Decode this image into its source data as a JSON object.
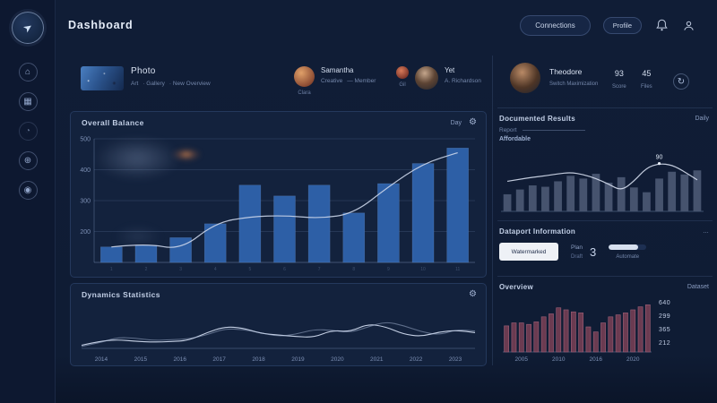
{
  "app": {
    "title": "Dashboard"
  },
  "sidebar": {
    "items": [
      {
        "name": "home",
        "glyph": "⌂"
      },
      {
        "name": "analytics",
        "glyph": "▦"
      },
      {
        "name": "activity",
        "glyph": "◔"
      },
      {
        "name": "history",
        "glyph": "⊕"
      },
      {
        "name": "profile",
        "glyph": "◉"
      }
    ],
    "logo_glyph": "➤"
  },
  "header": {
    "primary_button": "Connections",
    "secondary_button": "Profile"
  },
  "top_row": {
    "media_card": {
      "title": "Photo",
      "meta": [
        "Art",
        "· Gallery",
        "· New Overview"
      ]
    },
    "person_primary": {
      "name": "Samantha",
      "caption": "Clara",
      "role1": "Creative",
      "role2": "— Member"
    },
    "person_secondary": {
      "name": "Yet",
      "caption": "Gil",
      "role": "A. Richardson"
    }
  },
  "profile_card": {
    "name": "Theodore",
    "subtitle": "Switch Maximization",
    "stats": [
      {
        "value": "93",
        "label": "Score"
      },
      {
        "value": "45",
        "label": "Files"
      }
    ],
    "action_glyph": "↻"
  },
  "balance_panel": {
    "title": "Overall Balance",
    "range_label": "Day",
    "gear_glyph": "⚙"
  },
  "dynamics_panel": {
    "title": "Dynamics Statistics",
    "gear_glyph": "⚙"
  },
  "documented_panel": {
    "title": "Documented Results",
    "link_label": "Daily",
    "legend_label": "Report",
    "legend_sub": "Affordable"
  },
  "dataport_panel": {
    "title": "Dataport Information",
    "more_glyph": "…",
    "button_label": "Watermarked",
    "stat": {
      "line1": "Plan",
      "line2": "Draft",
      "value": "3"
    },
    "progress": {
      "label": "Automate",
      "percent": 78
    }
  },
  "overview_panel": {
    "title": "Overview",
    "dataset_label": "Dataset",
    "values": [
      "640",
      "299",
      "365",
      "212"
    ]
  },
  "colors": {
    "background": "#101d36",
    "panel": "#13223d",
    "bar_blue": "#2d5fa6",
    "bar_slate": "#46536e",
    "bar_maroon": "#6b3b51",
    "line_light": "#ccd6ea",
    "accent_orange": "#e09055"
  },
  "chart_data": [
    {
      "id": "balance",
      "type": "bar+line",
      "title": "Overall Balance",
      "categories": [
        "1",
        "2",
        "3",
        "4",
        "5",
        "6",
        "7",
        "8",
        "9",
        "10",
        "11"
      ],
      "bar_values": [
        150,
        155,
        180,
        225,
        350,
        315,
        350,
        260,
        355,
        420,
        470
      ],
      "line_values": [
        150,
        162,
        140,
        228,
        248,
        252,
        242,
        258,
        345,
        420,
        455
      ],
      "ylim": [
        100,
        500
      ],
      "y_ticks": [
        200,
        300,
        400,
        500
      ],
      "grid": true,
      "axis_left": true,
      "bar_color": "#2d5fa6",
      "bar_stroke": "rgba(140,180,235,0.3)",
      "line_color": "#ccd6ea"
    },
    {
      "id": "dynamics",
      "type": "line",
      "title": "Dynamics Statistics",
      "x_labels": [
        "2014",
        "2015",
        "2016",
        "2017",
        "2018",
        "2019",
        "2020",
        "2021",
        "2022",
        "2023"
      ],
      "series": [
        {
          "name": "primary",
          "values": [
            8,
            18,
            22,
            18,
            16,
            17,
            20,
            40,
            55,
            52,
            38,
            34,
            30,
            28,
            46,
            42,
            62,
            55,
            36,
            30,
            42,
            46,
            40
          ]
        },
        {
          "name": "secondary",
          "values": [
            5,
            14,
            28,
            26,
            20,
            22,
            24,
            34,
            50,
            48,
            40,
            30,
            36,
            48,
            46,
            40,
            54,
            68,
            58,
            42,
            34,
            48,
            44
          ]
        }
      ],
      "ylim": [
        0,
        100
      ],
      "grid": false,
      "line_color": "#ccd6ea"
    },
    {
      "id": "documented",
      "type": "bar+line",
      "title": "Documented Results",
      "bar_values": [
        25,
        32,
        38,
        36,
        44,
        52,
        48,
        55,
        42,
        50,
        35,
        28,
        48,
        58,
        54,
        60
      ],
      "line_values": [
        44,
        47,
        50,
        52,
        55,
        57,
        54,
        48,
        40,
        30,
        44,
        64,
        70,
        68,
        58,
        46
      ],
      "annotation": {
        "index": 12,
        "label": "90"
      },
      "ylim": [
        0,
        80
      ],
      "bar_color": "#46536e",
      "line_color": "#d6deee"
    },
    {
      "id": "overview",
      "type": "bar",
      "title": "Overview",
      "bar_values": [
        52,
        58,
        58,
        55,
        60,
        70,
        76,
        88,
        84,
        80,
        78,
        50,
        40,
        58,
        70,
        74,
        78,
        84,
        90,
        94
      ],
      "x_labels": [
        "2005",
        "2010",
        "2016",
        "2020"
      ],
      "ylim": [
        0,
        100
      ],
      "bar_color": "#6b3b51",
      "bar_stroke": "#9d6078"
    }
  ]
}
